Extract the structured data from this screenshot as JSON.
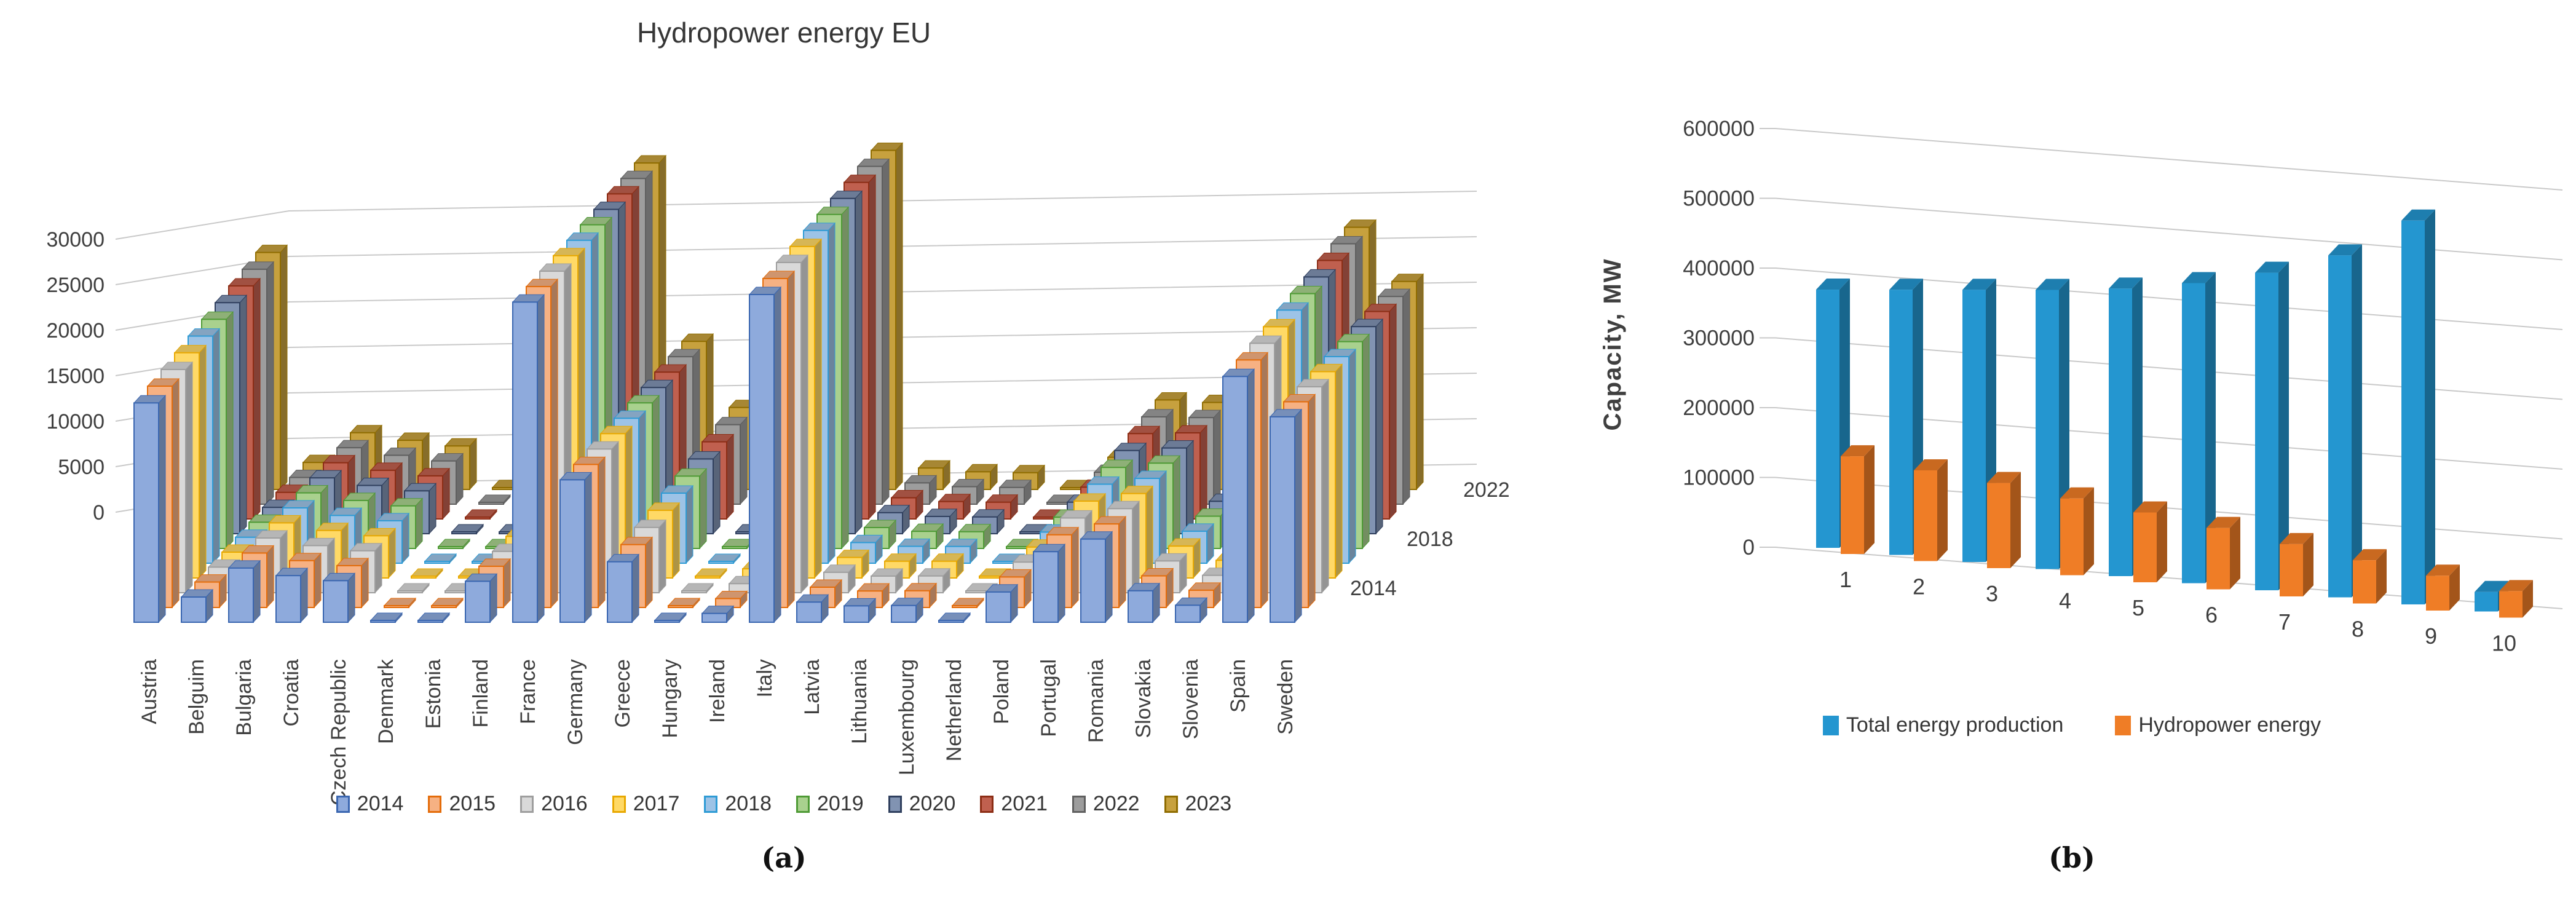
{
  "figure": {
    "caption_a": "(a)",
    "caption_b": "(b)"
  },
  "chart_data": [
    {
      "type": "bar",
      "variant": "3d-column",
      "title": "Hydropower energy EU",
      "xlabel": "",
      "ylabel": "",
      "ylim": [
        0,
        30000
      ],
      "yticks": [
        0,
        5000,
        10000,
        15000,
        20000,
        25000,
        30000
      ],
      "grid": true,
      "legend_position": "bottom",
      "depth_axis_labels": [
        "2014",
        "2018",
        "2022"
      ],
      "categories": [
        "Austria",
        "Belguim",
        "Bulgaria",
        "Croatia",
        "Czech Republic",
        "Denmark",
        "Estonia",
        "Finland",
        "France",
        "Germany",
        "Greece",
        "Hungary",
        "Ireland",
        "Italy",
        "Latvia",
        "Lithuania",
        "Luxembourg",
        "Netherland",
        "Poland",
        "Portugal",
        "Romania",
        "Slovakia",
        "Slovenia",
        "Spain",
        "Sweden"
      ],
      "series": [
        {
          "name": "2014",
          "fill": "#8EAADC",
          "border": "#3A66B0",
          "values": [
            17400,
            2000,
            4300,
            3700,
            3300,
            10,
            20,
            3250,
            25400,
            11300,
            4800,
            60,
            700,
            26000,
            1600,
            1300,
            1330,
            40,
            2400,
            5600,
            6600,
            2500,
            1350,
            19500,
            16300
          ]
        },
        {
          "name": "2015",
          "fill": "#F6B183",
          "border": "#E46C0A",
          "values": [
            17560,
            2020,
            4320,
            3720,
            3320,
            10,
            20,
            3270,
            25460,
            11350,
            4990,
            60,
            710,
            26100,
            1610,
            1310,
            1330,
            40,
            2420,
            5770,
            6630,
            2510,
            1370,
            19640,
            16320
          ]
        },
        {
          "name": "2016",
          "fill": "#D9D9D9",
          "border": "#9E9E9E",
          "values": [
            17710,
            2030,
            4340,
            3740,
            3330,
            10,
            20,
            3280,
            25510,
            11400,
            5180,
            60,
            720,
            26200,
            1620,
            1320,
            1330,
            40,
            2430,
            5930,
            6670,
            2520,
            1380,
            19790,
            16340
          ]
        },
        {
          "name": "2017",
          "fill": "#FFD966",
          "border": "#E8A800",
          "values": [
            17870,
            2050,
            4370,
            3770,
            3350,
            10,
            30,
            3300,
            25570,
            11450,
            5370,
            60,
            730,
            26300,
            1630,
            1330,
            1330,
            40,
            2450,
            6100,
            6700,
            2530,
            1400,
            19930,
            16370
          ]
        },
        {
          "name": "2018",
          "fill": "#9DC3E6",
          "border": "#2E9BD5",
          "values": [
            18020,
            2060,
            4390,
            3790,
            3370,
            20,
            30,
            3320,
            25620,
            11500,
            5560,
            60,
            740,
            26400,
            1640,
            1340,
            1330,
            40,
            2470,
            6270,
            6730,
            2540,
            1420,
            20080,
            16390
          ]
        },
        {
          "name": "2019",
          "fill": "#A9D18E",
          "border": "#4E9A35",
          "values": [
            18180,
            2080,
            4410,
            3810,
            3380,
            20,
            30,
            3330,
            25680,
            11550,
            5740,
            60,
            760,
            26500,
            1660,
            1360,
            1330,
            40,
            2480,
            6430,
            6770,
            2560,
            1430,
            20220,
            16410
          ]
        },
        {
          "name": "2020",
          "fill": "#8193B2",
          "border": "#2F3F5E",
          "values": [
            18330,
            2090,
            4430,
            3830,
            3400,
            20,
            30,
            3350,
            25730,
            11600,
            5930,
            60,
            770,
            26600,
            1670,
            1370,
            1330,
            40,
            2500,
            6600,
            6800,
            2570,
            1450,
            20370,
            16430
          ]
        },
        {
          "name": "2021",
          "fill": "#C0604F",
          "border": "#8C2D15",
          "values": [
            18490,
            2110,
            4460,
            3860,
            3420,
            30,
            40,
            3370,
            25790,
            11650,
            6120,
            60,
            780,
            26700,
            1680,
            1380,
            1330,
            40,
            2520,
            6770,
            6830,
            2580,
            1470,
            20510,
            16460
          ]
        },
        {
          "name": "2022",
          "fill": "#9D9D9D",
          "border": "#5F5F5F",
          "values": [
            18640,
            2120,
            4480,
            3880,
            3430,
            30,
            40,
            3380,
            25840,
            11700,
            6310,
            60,
            790,
            26800,
            1690,
            1390,
            1330,
            40,
            2530,
            6930,
            6870,
            2590,
            1480,
            20660,
            16480
          ]
        },
        {
          "name": "2023",
          "fill": "#C7A13E",
          "border": "#8F6C00",
          "values": [
            18800,
            2140,
            4500,
            3900,
            3450,
            30,
            40,
            3400,
            25900,
            11750,
            6500,
            60,
            800,
            26900,
            1700,
            1400,
            1330,
            40,
            2550,
            7100,
            6900,
            2600,
            1500,
            20800,
            16500
          ]
        }
      ]
    },
    {
      "type": "bar",
      "variant": "3d-column",
      "title": "",
      "xlabel": "",
      "ylabel": "Capacity, MW",
      "ylim": [
        0,
        600000
      ],
      "yticks": [
        0,
        100000,
        200000,
        300000,
        400000,
        500000,
        600000
      ],
      "grid": true,
      "legend_position": "bottom",
      "categories": [
        "1",
        "2",
        "3",
        "4",
        "5",
        "6",
        "7",
        "8",
        "9",
        "10"
      ],
      "series": [
        {
          "name": "Total energy production",
          "fill": "#2496D0",
          "border": "#2496D0",
          "values": [
            370000,
            380000,
            390000,
            400000,
            412000,
            430000,
            455000,
            490000,
            550000,
            28000
          ]
        },
        {
          "name": "Hydropower energy",
          "fill": "#EF7D26",
          "border": "#EF7D26",
          "values": [
            140000,
            130000,
            122000,
            110000,
            100000,
            88000,
            75000,
            62000,
            50000,
            38000
          ]
        }
      ]
    }
  ]
}
